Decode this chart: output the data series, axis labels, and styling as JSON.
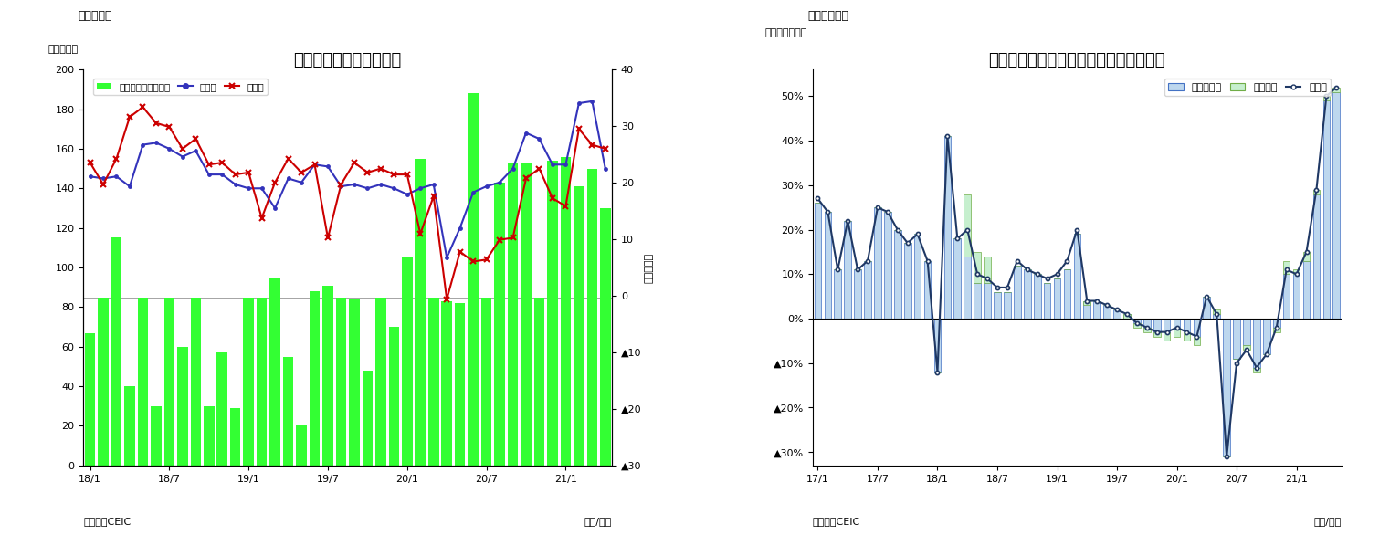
{
  "chart1": {
    "title": "インドネシア　貿易収支",
    "super_title": "（図表９）",
    "ylabel_left": "（億ドル）",
    "ylabel_right": "（億ドル）",
    "xlabel": "（年/月）",
    "source": "（資料）CEIC",
    "legend_tb": "貿易収支（右目盛）",
    "legend_exp": "輸出額",
    "legend_imp": "輸入額",
    "ylim_left": [
      0,
      200
    ],
    "ylim_right": [
      -30,
      40
    ],
    "xtick_labels": [
      "18/1",
      "18/7",
      "19/1",
      "19/7",
      "20/1",
      "20/7",
      "21/1"
    ],
    "xtick_pos": [
      0,
      6,
      12,
      18,
      24,
      30,
      36
    ],
    "n": 40,
    "trade_balance_left": [
      67,
      85,
      115,
      40,
      85,
      30,
      85,
      60,
      85,
      30,
      57,
      29,
      85,
      85,
      95,
      55,
      20,
      88,
      91,
      85,
      84,
      48,
      85,
      70,
      105,
      155,
      85,
      83,
      82,
      188,
      85,
      143,
      153,
      153,
      85,
      154,
      156,
      141,
      150,
      130
    ],
    "exports": [
      146,
      145,
      146,
      141,
      162,
      163,
      160,
      156,
      159,
      147,
      147,
      142,
      140,
      140,
      130,
      145,
      143,
      152,
      151,
      141,
      142,
      140,
      142,
      140,
      137,
      140,
      142,
      105,
      120,
      138,
      141,
      143,
      150,
      168,
      165,
      152,
      152,
      183,
      184,
      150
    ],
    "imports": [
      153,
      142,
      155,
      176,
      181,
      173,
      171,
      160,
      165,
      152,
      153,
      147,
      148,
      125,
      143,
      155,
      148,
      152,
      115,
      142,
      153,
      148,
      150,
      147,
      147,
      117,
      136,
      84,
      108,
      103,
      104,
      114,
      115,
      145,
      150,
      135,
      131,
      170,
      162,
      160
    ],
    "bar_color": "#33FF33",
    "export_color": "#3333BB",
    "import_color": "#CC0000",
    "bg_color": "#FFFFFF"
  },
  "chart2": {
    "title": "インドネシア　輸出の伸び率（品目別）",
    "super_title": "（図表１０）",
    "ylabel_left": "（前年同月比）",
    "xlabel": "（年/月）",
    "source": "（資料）CEIC",
    "legend_noil": "非石油ガス",
    "legend_oil": "石油ガス",
    "legend_exp": "輸出額",
    "ylim": [
      -0.33,
      0.56
    ],
    "xtick_labels": [
      "17/1",
      "17/7",
      "18/1",
      "18/7",
      "19/1",
      "19/7",
      "20/1",
      "20/7",
      "21/1"
    ],
    "xtick_pos": [
      0,
      6,
      12,
      18,
      24,
      30,
      36,
      42,
      48
    ],
    "n": 53,
    "non_oil_gas": [
      0.26,
      0.24,
      0.11,
      0.22,
      0.11,
      0.13,
      0.25,
      0.24,
      0.2,
      0.17,
      0.19,
      0.13,
      -0.12,
      0.41,
      0.18,
      0.14,
      0.08,
      0.08,
      0.06,
      0.06,
      0.12,
      0.11,
      0.1,
      0.08,
      0.09,
      0.11,
      0.19,
      0.04,
      0.04,
      0.03,
      0.02,
      0.01,
      -0.01,
      -0.02,
      -0.03,
      -0.03,
      -0.02,
      -0.03,
      -0.04,
      0.05,
      0.01,
      -0.31,
      -0.09,
      -0.06,
      -0.11,
      -0.08,
      -0.02,
      0.1,
      0.1,
      0.13,
      0.28,
      0.49,
      0.51
    ],
    "oil_gas": [
      0.0,
      0.0,
      0.0,
      0.0,
      0.0,
      0.0,
      0.0,
      0.0,
      0.0,
      0.0,
      0.0,
      0.0,
      0.0,
      0.0,
      0.0,
      0.14,
      0.07,
      0.06,
      0.0,
      0.0,
      0.0,
      0.0,
      0.0,
      0.0,
      0.0,
      0.0,
      0.0,
      -0.01,
      0.0,
      0.0,
      0.0,
      -0.01,
      -0.01,
      -0.01,
      -0.01,
      -0.02,
      -0.02,
      -0.02,
      -0.02,
      0.0,
      0.01,
      0.0,
      0.0,
      -0.01,
      -0.01,
      0.0,
      -0.01,
      0.03,
      0.01,
      0.02,
      0.01,
      0.01,
      0.01
    ],
    "total_exports": [
      0.27,
      0.24,
      0.11,
      0.22,
      0.11,
      0.13,
      0.25,
      0.24,
      0.2,
      0.17,
      0.19,
      0.13,
      -0.12,
      0.41,
      0.18,
      0.2,
      0.1,
      0.09,
      0.07,
      0.07,
      0.13,
      0.11,
      0.1,
      0.09,
      0.1,
      0.13,
      0.2,
      0.04,
      0.04,
      0.03,
      0.02,
      0.01,
      -0.01,
      -0.02,
      -0.03,
      -0.03,
      -0.02,
      -0.03,
      -0.04,
      0.05,
      0.01,
      -0.31,
      -0.1,
      -0.07,
      -0.11,
      -0.08,
      -0.02,
      0.11,
      0.1,
      0.15,
      0.29,
      0.5,
      0.52
    ],
    "non_oil_gas_color": "#BDD7EE",
    "oil_gas_color": "#C6EFCE",
    "oil_gas_edge": "#70AD47",
    "non_oil_gas_edge": "#4472C4",
    "total_color": "#1F3864",
    "bg_color": "#FFFFFF"
  }
}
